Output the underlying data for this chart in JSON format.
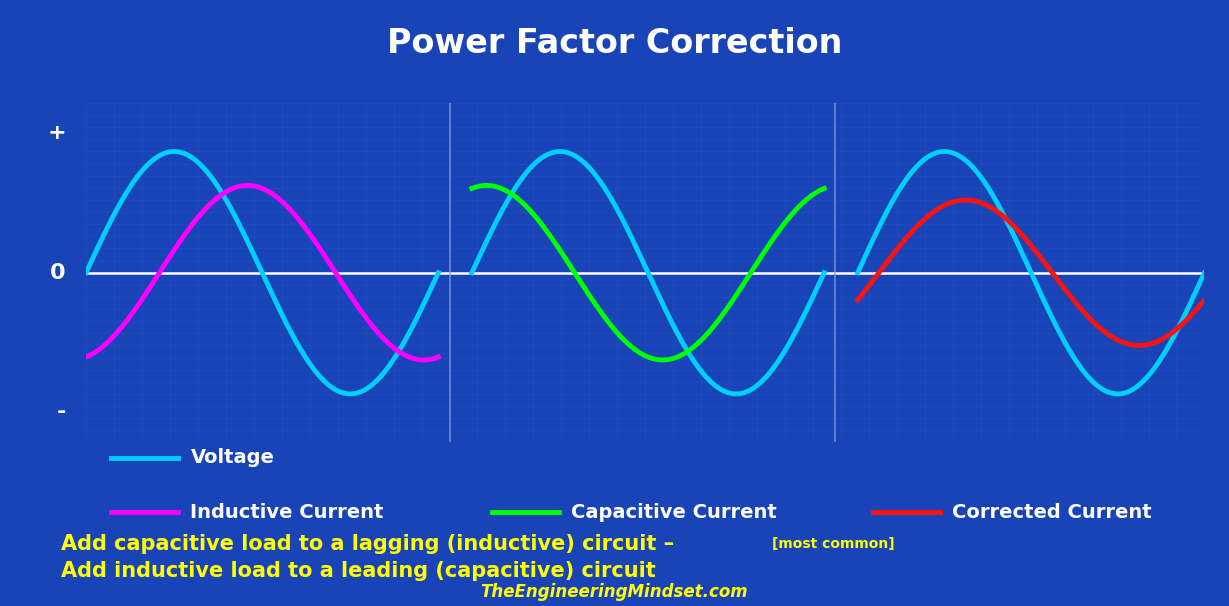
{
  "title": "Power Factor Correction",
  "title_color": "#FFFFFF",
  "bg_color": "#1944b8",
  "grid_color": "#2255d0",
  "zero_line_color": "#FFFFFF",
  "divider_color": "#8899cc",
  "voltage_color": "#00CFFF",
  "inductive_color": "#FF00FF",
  "capacitive_color": "#00FF00",
  "corrected_color": "#FF1111",
  "legend_voltage": "Voltage",
  "legend_inductive": "Inductive Current",
  "legend_capacitive": "Capacitive Current",
  "legend_corrected": "Corrected Current",
  "annotation_line1_main": "Add capacitive load to a lagging (inductive) circuit – ",
  "annotation_line1_small": "[most common]",
  "annotation_line2": "Add inductive load to a leading (capacitive) circuit",
  "annotation_color": "#FFFF00",
  "footer": "TheEngineeringMindset.com",
  "footer_color": "#FFFF00",
  "voltage_amplitude": 1.0,
  "inductive_amplitude": 0.72,
  "inductive_lag_deg": 75,
  "capacitive_amplitude": 0.72,
  "capacitive_lead_deg": 75,
  "corrected_amplitude": 0.6,
  "corrected_lag_deg": 22
}
